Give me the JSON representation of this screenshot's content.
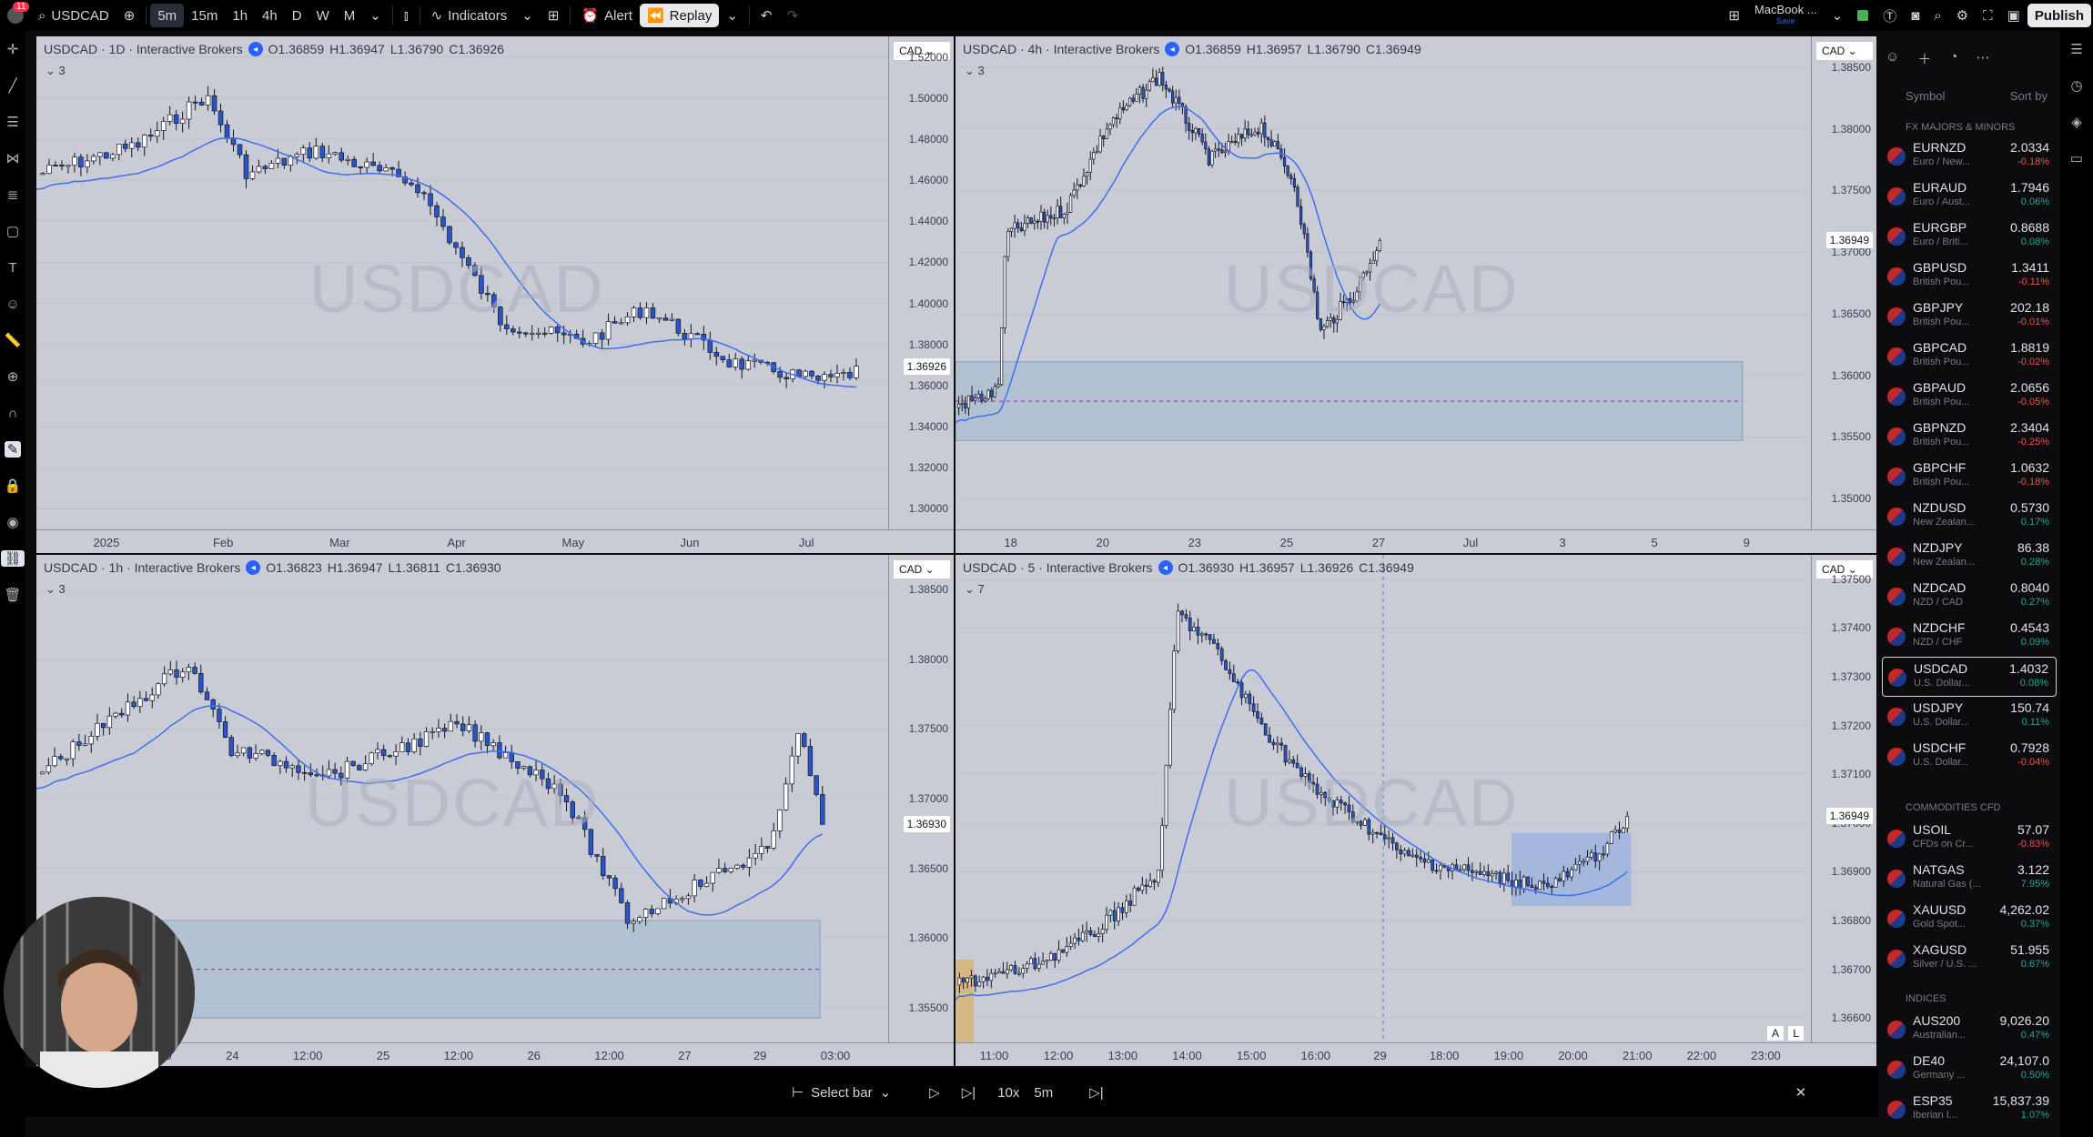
{
  "topbar": {
    "symbol": "USDCAD",
    "intervals": [
      "5m",
      "15m",
      "1h",
      "4h",
      "D",
      "W",
      "M"
    ],
    "indicators": "Indicators",
    "alert": "Alert",
    "replay": "Replay",
    "layout_name": "MacBook ...",
    "layout_sub": "Save",
    "publish": "Publish",
    "badge": "11"
  },
  "panels": [
    {
      "title": "USDCAD · 1D · Interactive Brokers",
      "o": "O1.36859",
      "h": "H1.36947",
      "l": "L1.36790",
      "c": "C1.36926",
      "sub": "3",
      "watermark": "USDCAD",
      "currency": "CAD",
      "y_labels": [
        "1.52000",
        "1.50000",
        "1.48000",
        "1.46000",
        "1.44000",
        "1.42000",
        "1.40000",
        "1.38000",
        "1.36000",
        "1.34000",
        "1.32000",
        "1.30000"
      ],
      "price_tag": "1.36926",
      "x_labels": [
        "2025",
        "Feb",
        "Mar",
        "Apr",
        "May",
        "Jun",
        "Jul"
      ]
    },
    {
      "title": "USDCAD · 4h · Interactive Brokers",
      "o": "O1.36859",
      "h": "H1.36957",
      "l": "L1.36790",
      "c": "C1.36949",
      "sub": "3",
      "watermark": "USDCAD",
      "currency": "CAD",
      "y_labels": [
        "1.38500",
        "1.38000",
        "1.37500",
        "1.37000",
        "1.36500",
        "1.36000",
        "1.35500",
        "1.35000"
      ],
      "price_tag": "1.36949",
      "x_labels": [
        "18",
        "20",
        "23",
        "25",
        "27",
        "Jul",
        "3",
        "5",
        "9"
      ]
    },
    {
      "title": "USDCAD · 1h · Interactive Brokers",
      "o": "O1.36823",
      "h": "H1.36947",
      "l": "L1.36811",
      "c": "C1.36930",
      "sub": "3",
      "watermark": "USDCAD",
      "currency": "CAD",
      "y_labels": [
        "1.38500",
        "1.38000",
        "1.37500",
        "1.37000",
        "1.36500",
        "1.36000",
        "1.35500"
      ],
      "price_tag": "1.36930",
      "x_labels": [
        "03:00",
        "12:00",
        "24",
        "12:00",
        "25",
        "12:00",
        "26",
        "12:00",
        "27",
        "29",
        "03:00"
      ]
    },
    {
      "title": "USDCAD · 5 · Interactive Brokers",
      "o": "O1.36930",
      "h": "H1.36957",
      "l": "L1.36926",
      "c": "C1.36949",
      "sub": "7",
      "watermark": "USDCAD",
      "currency": "CAD",
      "y_labels": [
        "1.37500",
        "1.37400",
        "1.37300",
        "1.37200",
        "1.37100",
        "1.37000",
        "1.36900",
        "1.36800",
        "1.36700",
        "1.36600"
      ],
      "price_tag": "1.36949",
      "x_labels": [
        "11:00",
        "12:00",
        "13:00",
        "14:00",
        "15:00",
        "16:00",
        "29",
        "18:00",
        "19:00",
        "20:00",
        "21:00",
        "22:00",
        "23:00"
      ],
      "scale_a": "A",
      "scale_l": "L"
    }
  ],
  "watchlist": {
    "header": "Symbol",
    "sort": "Sort by",
    "sections": [
      "FX MAJORS & MINORS",
      "COMMODITIES CFD",
      "INDICES"
    ],
    "items": [
      {
        "sym": "EURNZD",
        "desc": "Euro / New...",
        "price": "2.0334",
        "chg": "-0.18%",
        "dir": "dn"
      },
      {
        "sym": "EURAUD",
        "desc": "Euro / Aust...",
        "price": "1.7946",
        "chg": "0.06%",
        "dir": "up"
      },
      {
        "sym": "EURGBP",
        "desc": "Euro / Briti...",
        "price": "0.8688",
        "chg": "0.08%",
        "dir": "up"
      },
      {
        "sym": "GBPUSD",
        "desc": "British Pou...",
        "price": "1.3411",
        "chg": "-0.11%",
        "dir": "dn"
      },
      {
        "sym": "GBPJPY",
        "desc": "British Pou...",
        "price": "202.18",
        "chg": "-0.01%",
        "dir": "dn"
      },
      {
        "sym": "GBPCAD",
        "desc": "British Pou...",
        "price": "1.8819",
        "chg": "-0.02%",
        "dir": "dn"
      },
      {
        "sym": "GBPAUD",
        "desc": "British Pou...",
        "price": "2.0656",
        "chg": "-0.05%",
        "dir": "dn"
      },
      {
        "sym": "GBPNZD",
        "desc": "British Pou...",
        "price": "2.3404",
        "chg": "-0.25%",
        "dir": "dn"
      },
      {
        "sym": "GBPCHF",
        "desc": "British Pou...",
        "price": "1.0632",
        "chg": "-0.18%",
        "dir": "dn"
      },
      {
        "sym": "NZDUSD",
        "desc": "New Zealan...",
        "price": "0.5730",
        "chg": "0.17%",
        "dir": "up"
      },
      {
        "sym": "NZDJPY",
        "desc": "New Zealan...",
        "price": "86.38",
        "chg": "0.28%",
        "dir": "up"
      },
      {
        "sym": "NZDCAD",
        "desc": "NZD / CAD",
        "price": "0.8040",
        "chg": "0.27%",
        "dir": "up"
      },
      {
        "sym": "NZDCHF",
        "desc": "NZD / CHF",
        "price": "0.4543",
        "chg": "0.09%",
        "dir": "up"
      },
      {
        "sym": "USDCAD",
        "desc": "U.S. Dollar...",
        "price": "1.4032",
        "chg": "0.08%",
        "dir": "up"
      },
      {
        "sym": "USDJPY",
        "desc": "U.S. Dollar...",
        "price": "150.74",
        "chg": "0.11%",
        "dir": "up"
      },
      {
        "sym": "USDCHF",
        "desc": "U.S. Dollar...",
        "price": "0.7928",
        "chg": "-0.04%",
        "dir": "dn"
      },
      {
        "sym": "USOIL",
        "desc": "CFDs on Cr...",
        "price": "57.07",
        "chg": "-0.83%",
        "dir": "dn"
      },
      {
        "sym": "NATGAS",
        "desc": "Natural Gas (...",
        "price": "3.122",
        "chg": "7.95%",
        "dir": "up"
      },
      {
        "sym": "XAUUSD",
        "desc": "Gold Spot...",
        "price": "4,262.02",
        "chg": "0.37%",
        "dir": "up"
      },
      {
        "sym": "XAGUSD",
        "desc": "Silver / U.S. ...",
        "price": "51.955",
        "chg": "0.67%",
        "dir": "up"
      },
      {
        "sym": "AUS200",
        "desc": "Australian...",
        "price": "9,026.20",
        "chg": "0.47%",
        "dir": "up"
      },
      {
        "sym": "DE40",
        "desc": "Germany ...",
        "price": "24,107.0",
        "chg": "0.50%",
        "dir": "up"
      },
      {
        "sym": "ESP35",
        "desc": "Iberian I...",
        "price": "15,837.39",
        "chg": "1.07%",
        "dir": "up"
      }
    ]
  },
  "bottombar": {
    "select_bar": "Select bar",
    "speed": "10x",
    "interval": "5m"
  }
}
